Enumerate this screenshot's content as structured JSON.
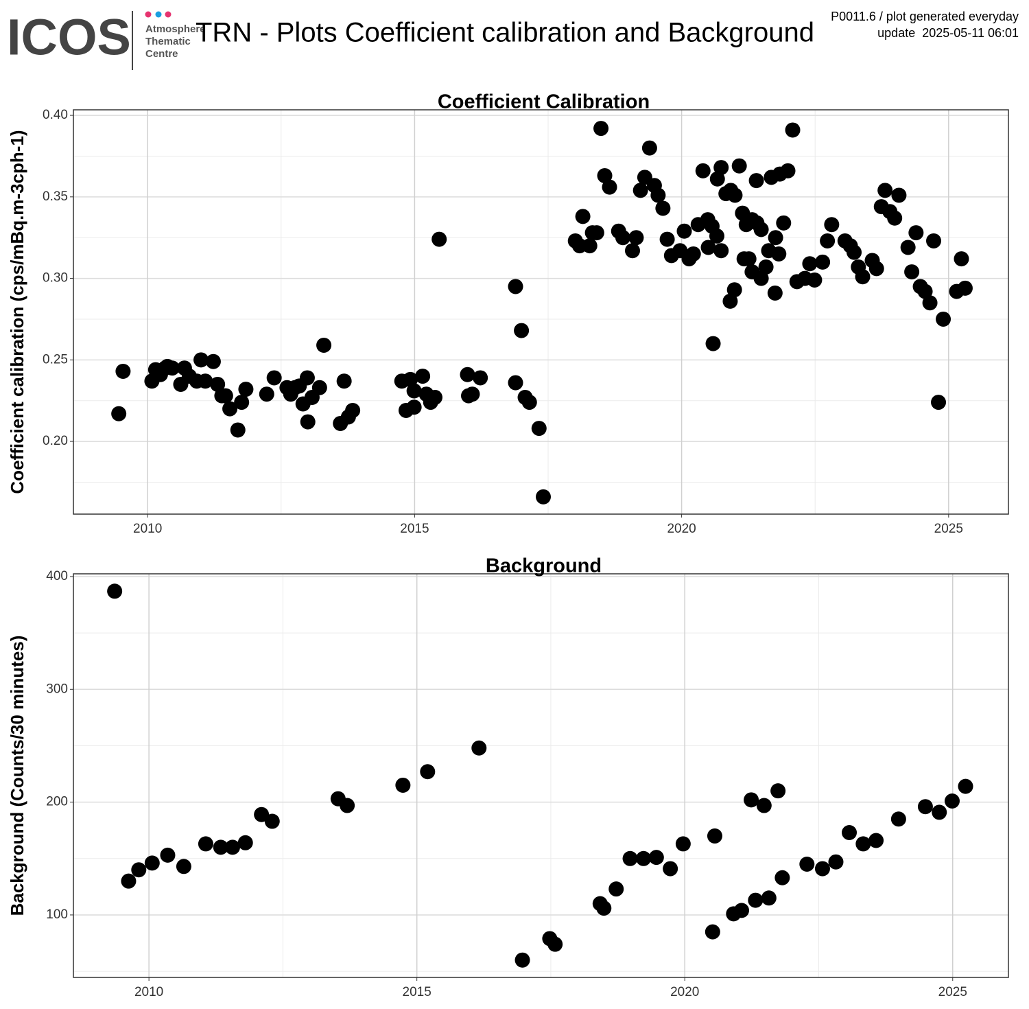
{
  "header": {
    "logo": "ICOS",
    "logo_lines": [
      "Atmosphere",
      "Thematic",
      "Centre"
    ],
    "title": "TRN - Plots Coefficient calibration and Background",
    "note": "P0011.6 / plot generated everyday",
    "update": "update  2025-05-11 06:01"
  },
  "chart_data": [
    {
      "type": "scatter",
      "title": "Coefficient Calibration",
      "ylabel": "Coefficient calibration (cps/mBq.m-3cph-1)",
      "color": "#000000",
      "grid": true,
      "xlim": [
        2008.61,
        2026.12
      ],
      "xticks": [
        2010,
        2015,
        2020,
        2025
      ],
      "xminor": [
        2012.5,
        2017.5,
        2022.5
      ],
      "ylim": [
        0.1554,
        0.4034
      ],
      "yticks": [
        {
          "value": 0.2,
          "label": "0.20"
        },
        0.25,
        {
          "value": 0.3,
          "label": "0.30"
        },
        0.35,
        {
          "value": 0.4,
          "label": "0.40"
        }
      ],
      "yminor": [
        0.175,
        0.225,
        0.275,
        0.325,
        0.375
      ],
      "x": [
        2009.46,
        2009.54,
        2010.08,
        2010.15,
        2010.24,
        2010.33,
        2010.37,
        2010.46,
        2010.62,
        2010.69,
        2010.78,
        2010.92,
        2011.0,
        2011.08,
        2011.23,
        2011.31,
        2011.39,
        2011.46,
        2011.54,
        2011.69,
        2011.76,
        2011.84,
        2012.23,
        2012.37,
        2012.61,
        2012.68,
        2012.76,
        2012.84,
        2012.91,
        2012.99,
        2013.0,
        2013.08,
        2013.22,
        2013.3,
        2013.61,
        2013.68,
        2013.76,
        2013.84,
        2014.76,
        2014.84,
        2014.92,
        2014.99,
        2014.99,
        2015.15,
        2015.22,
        2015.3,
        2015.38,
        2015.46,
        2015.99,
        2016.01,
        2016.08,
        2016.23,
        2016.89,
        2016.89,
        2017.0,
        2017.07,
        2017.15,
        2017.33,
        2017.41,
        2018.01,
        2018.09,
        2018.15,
        2018.28,
        2018.33,
        2018.41,
        2018.49,
        2018.56,
        2018.65,
        2018.82,
        2018.9,
        2019.08,
        2019.15,
        2019.23,
        2019.31,
        2019.4,
        2019.49,
        2019.56,
        2019.65,
        2019.73,
        2019.81,
        2019.97,
        2020.05,
        2020.14,
        2020.22,
        2020.31,
        2020.4,
        2020.49,
        2020.5,
        2020.57,
        2020.59,
        2020.66,
        2020.67,
        2020.74,
        2020.74,
        2020.83,
        2020.91,
        2020.92,
        2020.99,
        2021.0,
        2021.08,
        2021.14,
        2021.17,
        2021.21,
        2021.26,
        2021.32,
        2021.32,
        2021.4,
        2021.41,
        2021.49,
        2021.49,
        2021.58,
        2021.63,
        2021.68,
        2021.75,
        2021.76,
        2021.82,
        2021.84,
        2021.91,
        2021.99,
        2022.08,
        2022.16,
        2022.31,
        2022.4,
        2022.49,
        2022.64,
        2022.73,
        2022.81,
        2023.06,
        2023.16,
        2023.23,
        2023.31,
        2023.39,
        2023.57,
        2023.65,
        2023.74,
        2023.81,
        2023.9,
        2023.99,
        2024.07,
        2024.24,
        2024.31,
        2024.39,
        2024.47,
        2024.56,
        2024.65,
        2024.72,
        2024.81,
        2024.9,
        2025.15,
        2025.24,
        2025.31
      ],
      "values": [
        0.217,
        0.243,
        0.237,
        0.244,
        0.241,
        0.245,
        0.246,
        0.245,
        0.235,
        0.245,
        0.24,
        0.237,
        0.25,
        0.237,
        0.249,
        0.235,
        0.228,
        0.228,
        0.22,
        0.207,
        0.224,
        0.232,
        0.229,
        0.239,
        0.233,
        0.229,
        0.233,
        0.234,
        0.223,
        0.239,
        0.212,
        0.227,
        0.233,
        0.259,
        0.211,
        0.237,
        0.215,
        0.219,
        0.237,
        0.219,
        0.238,
        0.231,
        0.221,
        0.24,
        0.229,
        0.224,
        0.227,
        0.324,
        0.241,
        0.228,
        0.229,
        0.239,
        0.295,
        0.236,
        0.268,
        0.227,
        0.224,
        0.208,
        0.166,
        0.323,
        0.32,
        0.338,
        0.32,
        0.328,
        0.328,
        0.392,
        0.363,
        0.356,
        0.329,
        0.325,
        0.317,
        0.325,
        0.354,
        0.362,
        0.38,
        0.357,
        0.351,
        0.343,
        0.324,
        0.314,
        0.317,
        0.329,
        0.312,
        0.315,
        0.333,
        0.366,
        0.336,
        0.319,
        0.332,
        0.26,
        0.326,
        0.361,
        0.317,
        0.368,
        0.352,
        0.286,
        0.354,
        0.293,
        0.351,
        0.369,
        0.34,
        0.312,
        0.333,
        0.312,
        0.336,
        0.304,
        0.36,
        0.334,
        0.33,
        0.3,
        0.307,
        0.317,
        0.362,
        0.291,
        0.325,
        0.315,
        0.364,
        0.334,
        0.366,
        0.391,
        0.298,
        0.3,
        0.309,
        0.299,
        0.31,
        0.323,
        0.333,
        0.323,
        0.32,
        0.316,
        0.307,
        0.301,
        0.311,
        0.306,
        0.344,
        0.354,
        0.341,
        0.337,
        0.351,
        0.319,
        0.304,
        0.328,
        0.295,
        0.292,
        0.285,
        0.323,
        0.224,
        0.275,
        0.292,
        0.312,
        0.294
      ]
    },
    {
      "type": "scatter",
      "title": "Background",
      "ylabel": "Background (Counts/30 minutes)",
      "color": "#000000",
      "grid": true,
      "xlim": [
        2008.59,
        2026.04
      ],
      "xticks": [
        2010,
        2015,
        2020,
        2025
      ],
      "xminor": [
        2012.5,
        2017.5,
        2022.5
      ],
      "ylim": [
        44.6,
        402.4
      ],
      "yticks": [
        100,
        200,
        300,
        400
      ],
      "yminor": [
        50,
        150,
        250,
        350
      ],
      "x": [
        2009.36,
        2009.62,
        2009.81,
        2010.06,
        2010.35,
        2010.65,
        2011.06,
        2011.34,
        2011.56,
        2011.8,
        2012.1,
        2012.3,
        2013.53,
        2013.7,
        2014.74,
        2015.2,
        2016.16,
        2016.97,
        2017.48,
        2017.58,
        2018.42,
        2018.49,
        2018.72,
        2018.98,
        2019.23,
        2019.47,
        2019.73,
        2019.97,
        2020.52,
        2020.56,
        2020.91,
        2021.06,
        2021.24,
        2021.32,
        2021.48,
        2021.57,
        2021.74,
        2021.82,
        2022.28,
        2022.57,
        2022.82,
        2023.07,
        2023.33,
        2023.57,
        2023.99,
        2024.49,
        2024.75,
        2024.99,
        2025.24
      ],
      "values": [
        387,
        130,
        140,
        146,
        153,
        143,
        163,
        160,
        160,
        164,
        189,
        183,
        203,
        197,
        215,
        227,
        248,
        60,
        79,
        74,
        110,
        106,
        123,
        150,
        150,
        151,
        141,
        163,
        85,
        170,
        101,
        104,
        202,
        113,
        197,
        115,
        210,
        133,
        145,
        141,
        147,
        173,
        163,
        166,
        185,
        196,
        191,
        201,
        214
      ]
    }
  ]
}
